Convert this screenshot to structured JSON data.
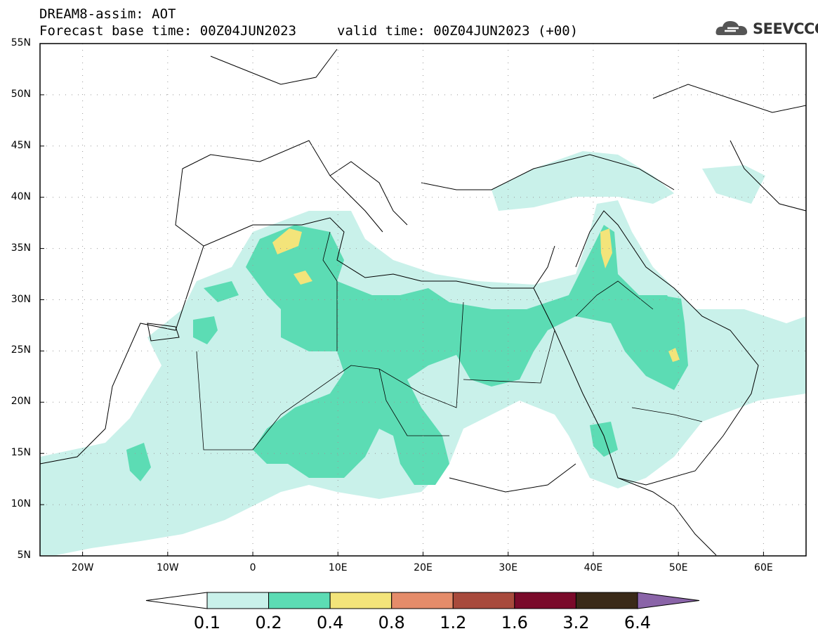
{
  "title": {
    "line1": "DREAM8-assim: AOT",
    "line2": "Forecast base time: 00Z04JUN2023",
    "valid": "valid time: 00Z04JUN2023 (+00)"
  },
  "logo": {
    "text": "SEEVCCC",
    "icon": "cloud-icon"
  },
  "map": {
    "lat_labels": [
      "55N",
      "50N",
      "45N",
      "40N",
      "35N",
      "30N",
      "25N",
      "20N",
      "15N",
      "10N",
      "5N"
    ],
    "lon_labels": [
      "20W",
      "10W",
      "0",
      "10E",
      "20E",
      "30E",
      "40E",
      "50E",
      "60E"
    ],
    "lon_range": [
      -25,
      65
    ],
    "lat_range": [
      5,
      55
    ],
    "grid": true
  },
  "colorbar": {
    "levels": [
      "0.1",
      "0.2",
      "0.4",
      "0.8",
      "1.2",
      "1.6",
      "3.2",
      "6.4"
    ],
    "colors": [
      "#ffffff",
      "#c9f1ea",
      "#5cdcb4",
      "#f3e47a",
      "#e58c6a",
      "#a84a3c",
      "#7a0a2a",
      "#3a2a18",
      "#8a64a8"
    ]
  }
}
